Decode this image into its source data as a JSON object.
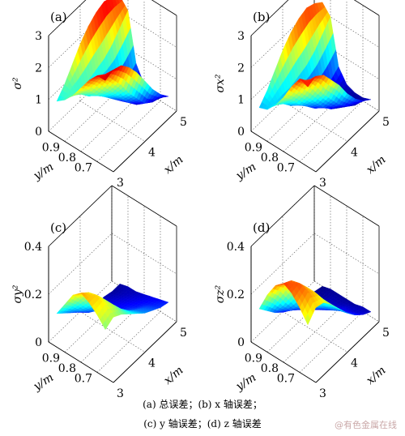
{
  "chart_data": [
    {
      "type": "surface",
      "panel_label": "(a)",
      "zlabel": "σ²",
      "xlabel": "x/m",
      "ylabel": "y/m",
      "xlim": [
        3,
        5
      ],
      "ylim": [
        0.6,
        1.0
      ],
      "zlim": [
        0,
        3
      ],
      "x_ticks": [
        "3",
        "4",
        "5"
      ],
      "y_ticks": [
        "0.9",
        "0.8",
        "0.7"
      ],
      "z_ticks": [
        "0",
        "1",
        "2",
        "3"
      ],
      "grid": true,
      "surface_x": [
        3.0,
        3.25,
        3.5,
        3.75,
        4.0,
        4.25,
        4.5,
        4.75,
        5.0
      ],
      "surface_y": [
        0.65,
        0.7,
        0.75,
        0.8,
        0.85,
        0.9,
        0.95
      ],
      "surface_z": [
        [
          2.7,
          2.8,
          2.7,
          2.4,
          2.0,
          1.5,
          1.0,
          0.6,
          0.3
        ],
        [
          2.7,
          2.5,
          2.1,
          1.7,
          1.2,
          0.8,
          0.4,
          0.2,
          0.1
        ],
        [
          2.4,
          2.1,
          1.7,
          1.3,
          0.9,
          0.5,
          0.2,
          0.1,
          0.1
        ],
        [
          2.0,
          1.7,
          1.3,
          1.0,
          0.7,
          0.4,
          0.2,
          0.1,
          0.2
        ],
        [
          1.6,
          1.4,
          1.1,
          0.9,
          0.7,
          0.5,
          0.4,
          0.5,
          0.7
        ],
        [
          1.3,
          1.3,
          1.2,
          1.2,
          1.3,
          1.4,
          1.6,
          1.9,
          2.2
        ],
        [
          1.1,
          1.4,
          1.8,
          2.2,
          2.5,
          2.7,
          2.8,
          2.7,
          2.5
        ]
      ]
    },
    {
      "type": "surface",
      "panel_label": "(b)",
      "zlabel": "σx²",
      "xlabel": "x/m",
      "ylabel": "y/m",
      "xlim": [
        3,
        5
      ],
      "ylim": [
        0.6,
        1.0
      ],
      "zlim": [
        0,
        3
      ],
      "x_ticks": [
        "3",
        "4",
        "5"
      ],
      "y_ticks": [
        "0.9",
        "0.8",
        "0.7"
      ],
      "z_ticks": [
        "0",
        "1",
        "2",
        "3"
      ],
      "grid": true,
      "surface_x": [
        3.0,
        3.25,
        3.5,
        3.75,
        4.0,
        4.25,
        4.5,
        4.75,
        5.0
      ],
      "surface_y": [
        0.65,
        0.7,
        0.75,
        0.8,
        0.85,
        0.9,
        0.95
      ],
      "surface_z": [
        [
          2.5,
          2.6,
          2.4,
          2.0,
          1.6,
          1.1,
          0.7,
          0.4,
          0.2
        ],
        [
          2.6,
          2.3,
          1.9,
          1.4,
          1.0,
          0.6,
          0.3,
          0.1,
          0.1
        ],
        [
          2.2,
          1.8,
          1.4,
          1.0,
          0.6,
          0.3,
          0.1,
          0.1,
          0.1
        ],
        [
          1.7,
          1.4,
          1.0,
          0.7,
          0.4,
          0.2,
          0.1,
          0.1,
          0.2
        ],
        [
          1.3,
          1.1,
          0.8,
          0.6,
          0.4,
          0.3,
          0.3,
          0.4,
          0.6
        ],
        [
          1.0,
          1.0,
          1.0,
          1.0,
          1.1,
          1.2,
          1.4,
          1.7,
          2.0
        ],
        [
          0.9,
          1.2,
          1.6,
          2.0,
          2.3,
          2.5,
          2.6,
          2.5,
          2.3
        ]
      ]
    },
    {
      "type": "surface",
      "panel_label": "(c)",
      "zlabel": "σy²",
      "xlabel": "x/m",
      "ylabel": "y/m",
      "xlim": [
        3,
        5
      ],
      "ylim": [
        0.6,
        1.0
      ],
      "zlim": [
        0,
        0.4
      ],
      "x_ticks": [
        "3",
        "4",
        "5"
      ],
      "y_ticks": [
        "0.9",
        "0.8",
        "0.7"
      ],
      "z_ticks": [
        "0",
        "0.2",
        "0.4"
      ],
      "grid": true,
      "surface_x": [
        3.0,
        3.25,
        3.5,
        3.75,
        4.0,
        4.25,
        4.5,
        4.75,
        5.0
      ],
      "surface_y": [
        0.65,
        0.7,
        0.75,
        0.8,
        0.85,
        0.9,
        0.95
      ],
      "surface_z": [
        [
          0.2,
          0.22,
          0.2,
          0.17,
          0.14,
          0.11,
          0.09,
          0.07,
          0.06
        ],
        [
          0.24,
          0.25,
          0.22,
          0.17,
          0.13,
          0.1,
          0.08,
          0.06,
          0.05
        ],
        [
          0.27,
          0.27,
          0.22,
          0.16,
          0.11,
          0.08,
          0.06,
          0.05,
          0.04
        ],
        [
          0.29,
          0.26,
          0.19,
          0.13,
          0.09,
          0.06,
          0.05,
          0.04,
          0.03
        ],
        [
          0.26,
          0.21,
          0.15,
          0.1,
          0.07,
          0.05,
          0.04,
          0.03,
          0.02
        ],
        [
          0.2,
          0.16,
          0.11,
          0.07,
          0.05,
          0.04,
          0.03,
          0.02,
          0.02
        ],
        [
          0.14,
          0.11,
          0.08,
          0.05,
          0.03,
          0.02,
          0.02,
          0.01,
          0.01
        ]
      ]
    },
    {
      "type": "surface",
      "panel_label": "(d)",
      "zlabel": "σz²",
      "xlabel": "x/m",
      "ylabel": "y/m",
      "xlim": [
        3,
        5
      ],
      "ylim": [
        0.6,
        1.0
      ],
      "zlim": [
        0,
        0.4
      ],
      "x_ticks": [
        "3",
        "4",
        "5"
      ],
      "y_ticks": [
        "0.9",
        "0.8",
        "0.7"
      ],
      "z_ticks": [
        "0",
        "0.2",
        "0.4"
      ],
      "grid": true,
      "surface_x": [
        3.0,
        3.25,
        3.5,
        3.75,
        4.0,
        4.25,
        4.5,
        4.75,
        5.0
      ],
      "surface_y": [
        0.65,
        0.7,
        0.75,
        0.8,
        0.85,
        0.9,
        0.95
      ],
      "surface_z": [
        [
          0.22,
          0.26,
          0.25,
          0.21,
          0.16,
          0.11,
          0.07,
          0.04,
          0.02
        ],
        [
          0.27,
          0.3,
          0.27,
          0.21,
          0.15,
          0.1,
          0.06,
          0.03,
          0.02
        ],
        [
          0.31,
          0.32,
          0.27,
          0.2,
          0.13,
          0.08,
          0.05,
          0.03,
          0.01
        ],
        [
          0.33,
          0.31,
          0.24,
          0.16,
          0.1,
          0.06,
          0.04,
          0.02,
          0.01
        ],
        [
          0.3,
          0.26,
          0.19,
          0.12,
          0.07,
          0.04,
          0.03,
          0.02,
          0.01
        ],
        [
          0.24,
          0.19,
          0.13,
          0.08,
          0.05,
          0.03,
          0.02,
          0.01,
          0.01
        ],
        [
          0.16,
          0.12,
          0.08,
          0.05,
          0.03,
          0.02,
          0.01,
          0.01,
          0.0
        ]
      ]
    }
  ],
  "caption": {
    "line1": "(a)  总误差；(b) x 轴误差；",
    "line2": "(c) y 轴误差；(d) z 轴误差"
  },
  "watermark": "@有色金属在线",
  "colors": {
    "low": "#00008f",
    "mid": "#33ccff",
    "midhigh": "#ffff00",
    "high": "#800000",
    "axis": "#000000",
    "grid": "#555555"
  }
}
